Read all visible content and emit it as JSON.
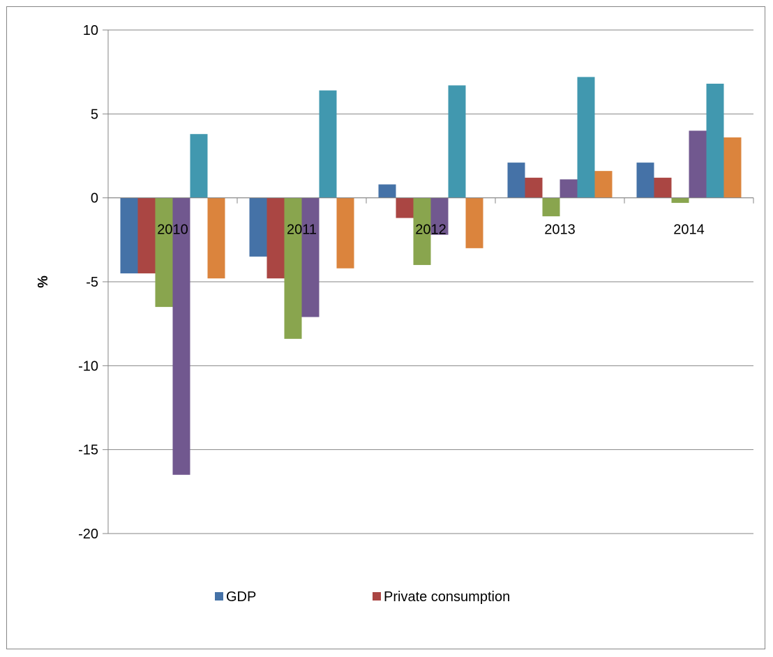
{
  "chart_data": {
    "type": "bar",
    "title": "",
    "xlabel": "",
    "ylabel": "%",
    "ylim": [
      -20,
      10
    ],
    "yticks": [
      10,
      5,
      0,
      -5,
      -10,
      -15,
      -20
    ],
    "categories": [
      "2010",
      "2011",
      "2012",
      "2013",
      "2014"
    ],
    "grid": true,
    "legend_position": "bottom",
    "series": [
      {
        "name": "GDP",
        "color": "#4572A7",
        "values": [
          -4.5,
          -3.5,
          0.8,
          2.1,
          2.1
        ]
      },
      {
        "name": "Private consumption",
        "color": "#AA4643",
        "values": [
          -4.5,
          -4.8,
          -1.2,
          1.2,
          1.2
        ]
      },
      {
        "color": "#89A54E",
        "values": [
          -6.5,
          -8.4,
          -4.0,
          -1.1,
          -0.3
        ]
      },
      {
        "color": "#71588F",
        "values": [
          -16.5,
          -7.1,
          -2.2,
          1.1,
          4.0
        ]
      },
      {
        "color": "#4198AF",
        "values": [
          3.8,
          6.4,
          6.7,
          7.2,
          6.8
        ]
      },
      {
        "color": "#DB843D",
        "values": [
          -4.8,
          -4.2,
          -3.0,
          1.6,
          3.6
        ]
      }
    ]
  }
}
